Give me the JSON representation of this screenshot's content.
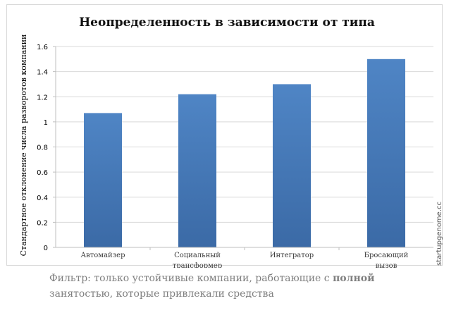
{
  "chart_data": {
    "type": "bar",
    "title": "Неопределенность в зависимости от типа",
    "ylabel": "Стандартное отклонение числа разворотов компании",
    "xlabel": "",
    "categories": [
      [
        "Автомайзер"
      ],
      [
        "Социальный",
        "трансформер"
      ],
      [
        "Интегратор"
      ],
      [
        "Бросающий",
        "вызов"
      ]
    ],
    "values": [
      1.07,
      1.22,
      1.3,
      1.5
    ],
    "ylim": [
      0,
      1.6
    ],
    "yticks": [
      "0",
      "0.2",
      "0.4",
      "0.6",
      "0.8",
      "1",
      "1.2",
      "1.4",
      "1.6"
    ],
    "grid": true,
    "bar_color": "#4a7ebb",
    "watermark": "startupgenome.cc"
  },
  "caption": {
    "part1": "Фильтр: только устойчивые компании, работающие с ",
    "bold": "полной",
    "part2": "занятостью,  которые привлекали средства"
  }
}
